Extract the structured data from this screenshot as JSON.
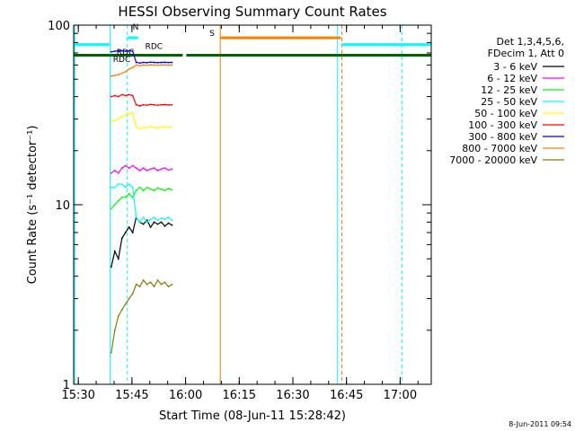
{
  "chart_data": {
    "type": "line",
    "title": "HESSI Observing Summary Count Rates",
    "xlabel": "Start Time (08-Jun-11 15:28:42)",
    "ylabel": "Count Rate (s⁻¹ detector⁻¹)",
    "xaxis_unit": "minutes after 15:28:42",
    "xlim": [
      0,
      100
    ],
    "ylim": [
      1,
      100
    ],
    "yscale": "log",
    "x_tick_labels": [
      "15:30",
      "15:45",
      "16:00",
      "16:15",
      "16:30",
      "16:45",
      "17:00"
    ],
    "x_ticks": [
      1.3,
      16.3,
      31.3,
      46.3,
      61.3,
      76.3,
      91.3
    ],
    "y_tick_labels": [
      "1",
      "10",
      "100"
    ],
    "y_ticks": [
      1,
      10,
      100
    ],
    "legend_header": [
      "Det 1,3,4,5,6,",
      "FDecim 1, Att 0"
    ],
    "legend_position": "right",
    "timestamp": "8-Jun-2011 09:54",
    "series": [
      {
        "name": "3 - 6 keV",
        "color": "#000000",
        "x": [
          10.5,
          11.5,
          12.5,
          13.5,
          14.5,
          15.5,
          16.5,
          17.5,
          18.5,
          19.5,
          20.5,
          21.5,
          22.5,
          23.5,
          24.5,
          25.5,
          26.5,
          27.5
        ],
        "y": [
          4.5,
          5.5,
          5.0,
          6.5,
          7.0,
          7.5,
          7.0,
          8.5,
          8.0,
          7.8,
          8.2,
          7.5,
          8.0,
          7.8,
          8.0,
          7.6,
          7.9,
          7.7
        ]
      },
      {
        "name": "6 - 12 keV",
        "color": "#ff00ff",
        "x": [
          10.5,
          11.5,
          12.5,
          13.5,
          14.5,
          15.5,
          16.5,
          17.5,
          18.5,
          19.5,
          20.5,
          21.5,
          22.5,
          23.5,
          24.5,
          25.5,
          26.5,
          27.5
        ],
        "y": [
          15.0,
          15.5,
          15.0,
          16.0,
          16.5,
          16.0,
          16.5,
          16.0,
          15.5,
          16.0,
          15.5,
          15.8,
          16.0,
          15.5,
          15.8,
          16.0,
          15.6,
          15.8
        ]
      },
      {
        "name": "12 - 25 keV",
        "color": "#00ff00",
        "x": [
          10.5,
          11.5,
          12.5,
          13.5,
          14.5,
          15.5,
          16.5,
          17.5,
          18.5,
          19.5,
          20.5,
          21.5,
          22.5,
          23.5,
          24.5,
          25.5,
          26.5,
          27.5
        ],
        "y": [
          9.5,
          10.0,
          10.5,
          11.0,
          11.0,
          11.5,
          11.0,
          12.0,
          12.5,
          12.0,
          12.5,
          12.2,
          12.0,
          12.4,
          12.2,
          12.0,
          12.3,
          12.1
        ]
      },
      {
        "name": "25 - 50 keV",
        "color": "#00ffff",
        "x": [
          10.5,
          11.5,
          12.5,
          13.5,
          14.5,
          15.5,
          16.5,
          17.5,
          18.5,
          19.5,
          20.5,
          21.5,
          22.5,
          23.5,
          24.5,
          25.5,
          26.5,
          27.5
        ],
        "y": [
          12.5,
          12.5,
          13.0,
          13.0,
          12.5,
          13.0,
          12.5,
          8.5,
          8.0,
          8.5,
          8.0,
          8.3,
          8.5,
          8.2,
          8.4,
          8.3,
          8.5,
          8.2
        ]
      },
      {
        "name": "50 - 100 keV",
        "color": "#ffff00",
        "x": [
          10.5,
          11.5,
          12.5,
          13.5,
          14.5,
          15.5,
          16.5,
          17.5,
          18.5,
          19.5,
          20.5,
          21.5,
          22.5,
          23.5,
          24.5,
          25.5,
          26.5,
          27.5
        ],
        "y": [
          29.0,
          29.5,
          30.0,
          31.0,
          31.5,
          32.0,
          32.5,
          27.0,
          26.5,
          27.0,
          26.8,
          27.2,
          27.0,
          26.8,
          27.0,
          27.1,
          26.9,
          27.0
        ]
      },
      {
        "name": "100 - 300 keV",
        "color": "#ff0000",
        "x": [
          10.5,
          11.5,
          12.5,
          13.5,
          14.5,
          15.5,
          16.5,
          17.5,
          18.5,
          19.5,
          20.5,
          21.5,
          22.5,
          23.5,
          24.5,
          25.5,
          26.5,
          27.5
        ],
        "y": [
          40.0,
          40.5,
          40.0,
          41.0,
          40.5,
          41.0,
          40.5,
          36.0,
          35.5,
          36.0,
          35.8,
          36.2,
          36.0,
          35.8,
          36.0,
          36.1,
          35.9,
          36.0
        ]
      },
      {
        "name": "300 - 800 keV",
        "color": "#0000ff",
        "x": [
          10.5,
          11.5,
          12.5,
          13.5,
          14.5,
          15.5,
          16.5,
          17.5,
          18.5,
          19.5,
          20.5,
          21.5,
          22.5,
          23.5,
          24.5,
          25.5,
          26.5,
          27.5
        ],
        "y": [
          71.0,
          71.5,
          72.0,
          72.0,
          71.5,
          72.0,
          71.5,
          62.0,
          61.5,
          62.0,
          61.8,
          62.2,
          62.0,
          61.8,
          62.0,
          62.1,
          61.9,
          62.0
        ]
      },
      {
        "name": "800 - 7000 keV",
        "color": "#ff8000",
        "x": [
          10.5,
          11.5,
          12.5,
          13.5,
          14.5,
          15.5,
          16.5,
          17.5,
          18.5,
          19.5,
          20.5,
          21.5,
          22.5,
          23.5,
          24.5,
          25.5,
          26.5,
          27.5
        ],
        "y": [
          52.0,
          52.5,
          53.0,
          54.0,
          55.0,
          57.0,
          58.0,
          60.0,
          59.5,
          60.0,
          59.8,
          60.2,
          60.0,
          59.8,
          60.0,
          60.1,
          59.9,
          60.0
        ]
      },
      {
        "name": "7000 - 20000 keV",
        "color": "#808000",
        "x": [
          10.5,
          11.5,
          12.5,
          13.5,
          14.5,
          15.5,
          16.5,
          17.5,
          18.5,
          19.5,
          20.5,
          21.5,
          22.5,
          23.5,
          24.5,
          25.5,
          26.5,
          27.5
        ],
        "y": [
          1.5,
          2.0,
          2.4,
          2.6,
          2.8,
          3.0,
          3.2,
          3.6,
          3.5,
          3.8,
          3.6,
          3.7,
          3.5,
          3.8,
          3.6,
          3.7,
          3.5,
          3.6
        ]
      }
    ],
    "annotations": [
      {
        "label": "S",
        "color": "#ff8000",
        "x": 41.0,
        "x_end": 74.7,
        "y": 85
      },
      {
        "label": "N",
        "color": "#00ffff",
        "x": 16.0,
        "y": 92
      },
      {
        "label": "RDC",
        "color": "#006400",
        "x": 19.5,
        "y": 72
      },
      {
        "label": "RDC",
        "color": "#006400",
        "x": 11.5,
        "y": 67
      },
      {
        "label": "RDC",
        "color": "#006400",
        "x": 10.5,
        "y": 61
      }
    ],
    "flag_bars": [
      {
        "color": "#006400",
        "x_start": 0,
        "x_end": 30.5,
        "y": 68
      },
      {
        "color": "#006400",
        "x_start": 31.5,
        "x_end": 100,
        "y": 68
      },
      {
        "color": "#00ffff",
        "x_start": 0,
        "x_end": 10.0,
        "y": 78
      },
      {
        "color": "#00ffff",
        "x_start": 15.0,
        "x_end": 18.0,
        "y": 85
      },
      {
        "color": "#00ffff",
        "x_start": 75.0,
        "x_end": 100,
        "y": 78
      }
    ],
    "vertical_lines": [
      {
        "x": 0.3,
        "color": "#00ffff",
        "style": "solid"
      },
      {
        "x": 10.2,
        "color": "#00ffff",
        "style": "solid"
      },
      {
        "x": 15.0,
        "color": "#00ffff",
        "style": "dashed"
      },
      {
        "x": 41.0,
        "color": "#ff8000",
        "style": "solid"
      },
      {
        "x": 73.8,
        "color": "#00ffff",
        "style": "solid"
      },
      {
        "x": 75.0,
        "color": "#ff8000",
        "style": "dashed"
      },
      {
        "x": 91.8,
        "color": "#00ffff",
        "style": "dashed"
      }
    ]
  }
}
